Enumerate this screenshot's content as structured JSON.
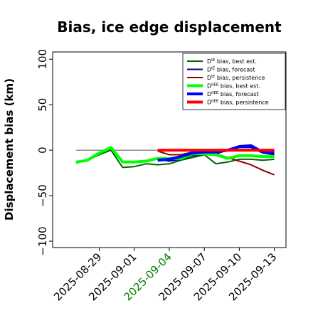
{
  "chart_data": {
    "type": "line",
    "title": "Bias, ice edge displacement",
    "ylabel": "Displacement bias (km)",
    "xlabel": "",
    "ylim": [
      -107,
      108
    ],
    "xlim": [
      "2025-08-25",
      "2025-09-14"
    ],
    "grid": false,
    "legend_position": "top-right",
    "y_ticks": [
      100,
      50,
      0,
      -50,
      -100
    ],
    "y_tick_labels": [
      "100",
      "50",
      "0",
      "−50",
      "−100"
    ],
    "x_ticks": [
      "2025-08-29",
      "2025-09-01",
      "2025-09-04",
      "2025-09-07",
      "2025-09-10",
      "2025-09-13"
    ],
    "x_tick_colors": [
      "#000000",
      "#000000",
      "#008000",
      "#000000",
      "#000000",
      "#000000"
    ],
    "zero_line": {
      "y": 0,
      "from": "2025-08-27",
      "to": "2025-09-13",
      "color": "#555555"
    },
    "series": [
      {
        "name_main": "D",
        "name_sup": "IE",
        "name_rest": " bias, best est.",
        "color": "#006400",
        "width": 2,
        "x": [
          "2025-08-27",
          "2025-08-28",
          "2025-08-29",
          "2025-08-30",
          "2025-08-31",
          "2025-09-01",
          "2025-09-02",
          "2025-09-03",
          "2025-09-04",
          "2025-09-05",
          "2025-09-06",
          "2025-09-07",
          "2025-09-08",
          "2025-09-09",
          "2025-09-10",
          "2025-09-11",
          "2025-09-12",
          "2025-09-13"
        ],
        "values": [
          -14,
          -11,
          -5,
          0,
          -19,
          -18,
          -15,
          -16,
          -15,
          -11,
          -8,
          -5,
          -15,
          -13,
          -10,
          -10,
          -11,
          -10
        ]
      },
      {
        "name_main": "D",
        "name_sup": "IE",
        "name_rest": " bias, forecast",
        "color": "#00008b",
        "width": 2,
        "x": [
          "2025-09-03",
          "2025-09-04",
          "2025-09-05",
          "2025-09-06",
          "2025-09-07",
          "2025-09-08",
          "2025-09-09",
          "2025-09-10",
          "2025-09-11",
          "2025-09-12",
          "2025-09-13"
        ],
        "values": [
          -10,
          -12,
          -10,
          -6,
          -5,
          -4,
          0,
          3,
          3,
          -3,
          -5
        ]
      },
      {
        "name_main": "D",
        "name_sup": "IE",
        "name_rest": " bias, persistence",
        "color": "#8b0000",
        "width": 2,
        "x": [
          "2025-09-03",
          "2025-09-04",
          "2025-09-05",
          "2025-09-06",
          "2025-09-07",
          "2025-09-08",
          "2025-09-09",
          "2025-09-10",
          "2025-09-11",
          "2025-09-12",
          "2025-09-13"
        ],
        "values": [
          -1,
          -5,
          -5,
          -2,
          -1,
          -4,
          -8,
          -12,
          -16,
          -22,
          -27
        ]
      },
      {
        "name_main": "D",
        "name_sup": "IIEE",
        "name_rest": " bias, best est.",
        "color": "#00ff00",
        "width": 4,
        "x": [
          "2025-08-27",
          "2025-08-28",
          "2025-08-29",
          "2025-08-30",
          "2025-08-31",
          "2025-09-01",
          "2025-09-02",
          "2025-09-03",
          "2025-09-04",
          "2025-09-05",
          "2025-09-06",
          "2025-09-07",
          "2025-09-08",
          "2025-09-09",
          "2025-09-10",
          "2025-09-11",
          "2025-09-12",
          "2025-09-13"
        ],
        "values": [
          -13,
          -11,
          -3,
          3,
          -13,
          -13,
          -12,
          -9,
          -9,
          -9,
          -4,
          -4,
          -5,
          -9,
          -6,
          -6,
          -7,
          -7
        ]
      },
      {
        "name_main": "D",
        "name_sup": "IIEE",
        "name_rest": " bias, forecast",
        "color": "#0000ff",
        "width": 4,
        "x": [
          "2025-09-03",
          "2025-09-04",
          "2025-09-05",
          "2025-09-06",
          "2025-09-07",
          "2025-09-08",
          "2025-09-09",
          "2025-09-10",
          "2025-09-11",
          "2025-09-12",
          "2025-09-13"
        ],
        "values": [
          -11,
          -10,
          -7,
          -3,
          -2,
          -2,
          0,
          4,
          5,
          -2,
          -3
        ]
      },
      {
        "name_main": "D",
        "name_sup": "IIEE",
        "name_rest": " bias, persistence",
        "color": "#ff0000",
        "width": 4,
        "x": [
          "2025-09-03",
          "2025-09-04",
          "2025-09-05",
          "2025-09-06",
          "2025-09-07",
          "2025-09-08",
          "2025-09-09",
          "2025-09-10",
          "2025-09-11",
          "2025-09-12",
          "2025-09-13"
        ],
        "values": [
          0,
          0,
          0,
          0,
          0,
          0,
          0,
          0,
          0,
          0,
          0
        ]
      }
    ]
  }
}
